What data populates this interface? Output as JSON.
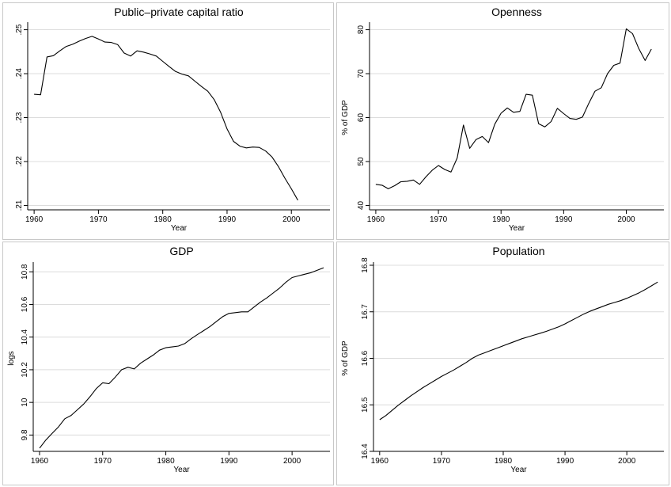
{
  "chart_data": [
    {
      "type": "line",
      "title": "Public–private capital ratio",
      "xlabel": "Year",
      "ylabel": "",
      "xlim": [
        1959,
        2006
      ],
      "ylim": [
        0.209,
        0.251
      ],
      "xticks": [
        1960,
        1970,
        1980,
        1990,
        2000
      ],
      "xtick_labels": [
        "1960",
        "1970",
        "1980",
        "1990",
        "2000"
      ],
      "yticks": [
        0.21,
        0.22,
        0.23,
        0.24,
        0.25
      ],
      "ytick_labels": [
        ".21",
        ".22",
        ".23",
        ".24",
        ".25"
      ],
      "grid": true,
      "series": [
        {
          "x": [
            1960,
            1961,
            1962,
            1963,
            1964,
            1965,
            1966,
            1967,
            1968,
            1969,
            1970,
            1971,
            1972,
            1973,
            1974,
            1975,
            1976,
            1977,
            1978,
            1979,
            1980,
            1981,
            1982,
            1983,
            1984,
            1985,
            1986,
            1987,
            1988,
            1989,
            1990,
            1991,
            1992,
            1993,
            1994,
            1995,
            1996,
            1997,
            1998,
            1999,
            2000,
            2001
          ],
          "y": [
            0.2353,
            0.2352,
            0.2438,
            0.2441,
            0.2452,
            0.2462,
            0.2467,
            0.2474,
            0.248,
            0.2485,
            0.2479,
            0.2472,
            0.2471,
            0.2466,
            0.2447,
            0.244,
            0.2452,
            0.2449,
            0.2445,
            0.244,
            0.2428,
            0.2416,
            0.2405,
            0.2399,
            0.2395,
            0.2383,
            0.2371,
            0.236,
            0.2341,
            0.2312,
            0.2274,
            0.2246,
            0.2235,
            0.2231,
            0.2233,
            0.2232,
            0.2224,
            0.221,
            0.2188,
            0.2162,
            0.2138,
            0.2112
          ]
        }
      ]
    },
    {
      "type": "line",
      "title": "Openness",
      "xlabel": "Year",
      "ylabel": "% of GDP",
      "xlim": [
        1959,
        2006
      ],
      "ylim": [
        39,
        81
      ],
      "xticks": [
        1960,
        1970,
        1980,
        1990,
        2000
      ],
      "xtick_labels": [
        "1960",
        "1970",
        "1980",
        "1990",
        "2000"
      ],
      "yticks": [
        40,
        50,
        60,
        70,
        80
      ],
      "ytick_labels": [
        "40",
        "50",
        "60",
        "70",
        "80"
      ],
      "grid": true,
      "series": [
        {
          "x": [
            1960,
            1961,
            1962,
            1963,
            1964,
            1965,
            1966,
            1967,
            1968,
            1969,
            1970,
            1971,
            1972,
            1973,
            1974,
            1975,
            1976,
            1977,
            1978,
            1979,
            1980,
            1981,
            1982,
            1983,
            1984,
            1985,
            1986,
            1987,
            1988,
            1989,
            1990,
            1991,
            1992,
            1993,
            1994,
            1995,
            1996,
            1997,
            1998,
            1999,
            2000,
            2001,
            2002,
            2003,
            2004
          ],
          "y": [
            44.8,
            44.6,
            43.8,
            44.5,
            45.4,
            45.5,
            45.8,
            44.8,
            46.5,
            48.0,
            49.1,
            48.2,
            47.6,
            50.8,
            58.3,
            53.0,
            55.0,
            55.7,
            54.3,
            58.5,
            61.0,
            62.2,
            61.2,
            61.4,
            65.3,
            65.1,
            58.6,
            57.9,
            59.1,
            62.1,
            60.9,
            59.8,
            59.6,
            60.1,
            63.2,
            66.0,
            66.8,
            70.0,
            71.9,
            72.4,
            80.2,
            79.1,
            75.7,
            73.0,
            75.6
          ]
        }
      ]
    },
    {
      "type": "line",
      "title": "GDP",
      "xlabel": "Year",
      "ylabel": "logs",
      "xlim": [
        1959,
        2006
      ],
      "ylim": [
        9.7,
        10.84
      ],
      "xticks": [
        1960,
        1970,
        1980,
        1990,
        2000
      ],
      "xtick_labels": [
        "1960",
        "1970",
        "1980",
        "1990",
        "2000"
      ],
      "yticks": [
        9.8,
        10,
        10.2,
        10.4,
        10.6,
        10.8
      ],
      "ytick_labels": [
        "9.8",
        "10",
        "10.2",
        "10.4",
        "10.6",
        "10.8"
      ],
      "grid": true,
      "series": [
        {
          "x": [
            1960,
            1961,
            1962,
            1963,
            1964,
            1965,
            1966,
            1967,
            1968,
            1969,
            1970,
            1971,
            1972,
            1973,
            1974,
            1975,
            1976,
            1977,
            1978,
            1979,
            1980,
            1981,
            1982,
            1983,
            1984,
            1985,
            1986,
            1987,
            1988,
            1989,
            1990,
            1991,
            1992,
            1993,
            1994,
            1995,
            1996,
            1997,
            1998,
            1999,
            2000,
            2001,
            2002,
            2003,
            2004,
            2005
          ],
          "y": [
            9.72,
            9.77,
            9.81,
            9.85,
            9.9,
            9.92,
            9.955,
            9.99,
            10.035,
            10.085,
            10.12,
            10.115,
            10.155,
            10.2,
            10.215,
            10.205,
            10.24,
            10.265,
            10.29,
            10.32,
            10.335,
            10.34,
            10.345,
            10.36,
            10.39,
            10.415,
            10.44,
            10.465,
            10.495,
            10.525,
            10.545,
            10.55,
            10.555,
            10.555,
            10.585,
            10.615,
            10.64,
            10.67,
            10.7,
            10.735,
            10.765,
            10.775,
            10.785,
            10.795,
            10.81,
            10.825
          ]
        }
      ]
    },
    {
      "type": "line",
      "title": "Population",
      "xlabel": "Year",
      "ylabel": "% of GDP",
      "xlim": [
        1959,
        2006
      ],
      "ylim": [
        16.4,
        16.8
      ],
      "xticks": [
        1960,
        1970,
        1980,
        1990,
        2000
      ],
      "xtick_labels": [
        "1960",
        "1970",
        "1980",
        "1990",
        "2000"
      ],
      "yticks": [
        16.4,
        16.5,
        16.6,
        16.7,
        16.8
      ],
      "ytick_labels": [
        "16.4",
        "16.5",
        "16.6",
        "16.7",
        "16.8"
      ],
      "grid": true,
      "series": [
        {
          "x": [
            1960,
            1961,
            1962,
            1963,
            1964,
            1965,
            1966,
            1967,
            1968,
            1969,
            1970,
            1971,
            1972,
            1973,
            1974,
            1975,
            1976,
            1977,
            1978,
            1979,
            1980,
            1981,
            1982,
            1983,
            1984,
            1985,
            1986,
            1987,
            1988,
            1989,
            1990,
            1991,
            1992,
            1993,
            1994,
            1995,
            1996,
            1997,
            1998,
            1999,
            2000,
            2001,
            2002,
            2003,
            2004,
            2005
          ],
          "y": [
            16.468,
            16.477,
            16.488,
            16.499,
            16.509,
            16.519,
            16.528,
            16.537,
            16.545,
            16.553,
            16.561,
            16.568,
            16.575,
            16.583,
            16.591,
            16.6,
            16.607,
            16.612,
            16.617,
            16.622,
            16.627,
            16.632,
            16.637,
            16.642,
            16.646,
            16.65,
            16.654,
            16.658,
            16.663,
            16.668,
            16.674,
            16.681,
            16.688,
            16.695,
            16.701,
            16.706,
            16.711,
            16.716,
            16.72,
            16.724,
            16.729,
            16.735,
            16.741,
            16.748,
            16.756,
            16.764
          ]
        }
      ]
    }
  ]
}
